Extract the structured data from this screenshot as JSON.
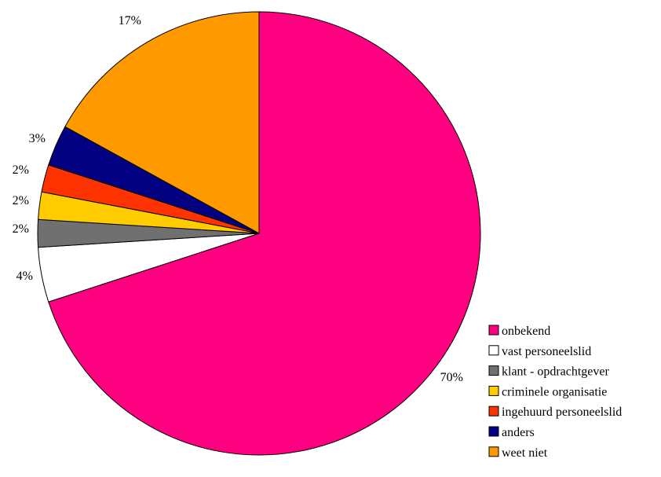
{
  "chart_data": {
    "type": "pie",
    "categories": [
      "onbekend",
      "vast personeelslid",
      "klant - opdrachtgever",
      "criminele organisatie",
      "ingehuurd personeelslid",
      "anders",
      "weet niet"
    ],
    "values": [
      70,
      4,
      2,
      2,
      2,
      3,
      17
    ],
    "data_labels": [
      "70%",
      "4%",
      "2%",
      "2%",
      "2%",
      "3%",
      "17%"
    ],
    "colors": [
      "#FF0080",
      "#FFFFFF",
      "#707070",
      "#FFCC00",
      "#FF3300",
      "#000080",
      "#FF9900"
    ],
    "legend_position": "bottom-right"
  }
}
